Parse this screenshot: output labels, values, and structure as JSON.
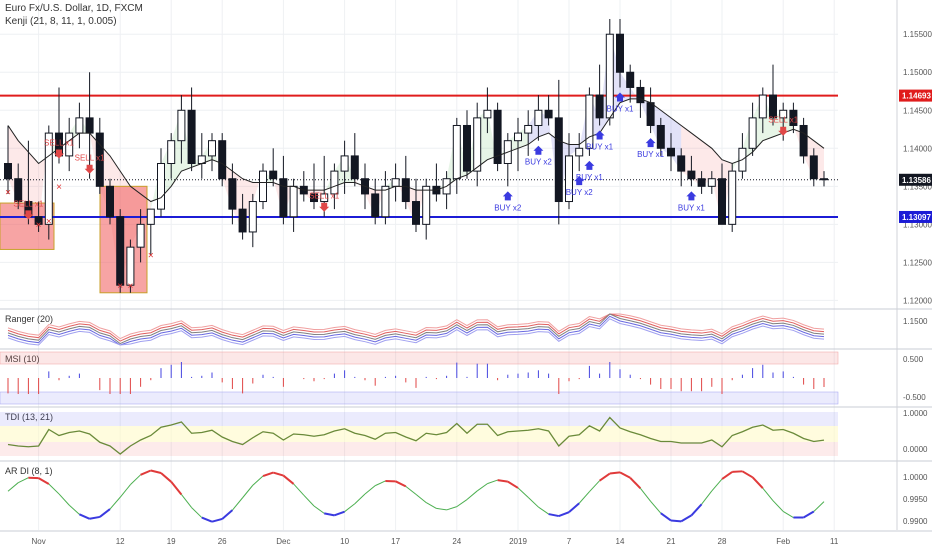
{
  "header": {
    "symbol_line": "Euro Fx/U.S. Dollar, 1D, FXCM",
    "indicator_line": "Kenji (21, 8, 11, 1, 0.005)"
  },
  "price_axis": {
    "ticks": [
      "1.15500",
      "1.15000",
      "1.14500",
      "1.14000",
      "1.13500",
      "1.13000",
      "1.12500",
      "1.12000"
    ]
  },
  "price_tags": [
    {
      "text": "1.14693",
      "value": 1.14693,
      "color": "#e01c1c"
    },
    {
      "text": "1.13586",
      "value": 1.13586,
      "color": "#131722"
    },
    {
      "text": "1.13097",
      "value": 1.13097,
      "color": "#1c1cd6"
    }
  ],
  "horizontal_levels": [
    {
      "value": 1.14693,
      "color": "#e01c1c"
    },
    {
      "value": 1.13097,
      "color": "#1c1cd6"
    }
  ],
  "time_axis": {
    "ticks": [
      "Nov",
      "12",
      "19",
      "26",
      "Dec",
      "10",
      "17",
      "24",
      "2019",
      "7",
      "14",
      "21",
      "28",
      "Feb",
      "11"
    ]
  },
  "signals": [
    {
      "label": "SELL x1",
      "type": "sell",
      "index": 2
    },
    {
      "label": "SELL x1",
      "type": "sell",
      "index": 5
    },
    {
      "label": "SELL x1",
      "type": "sell",
      "index": 8
    },
    {
      "label": "SELL x1",
      "type": "sell",
      "index": 31
    },
    {
      "label": "SELL x1",
      "type": "sell",
      "index": 76
    },
    {
      "label": "BUY x2",
      "type": "buy",
      "index": 49
    },
    {
      "label": "BUY x2",
      "type": "buy",
      "index": 52
    },
    {
      "label": "BUY x1",
      "type": "buy",
      "index": 58
    },
    {
      "label": "BUY x1",
      "type": "buy",
      "index": 57
    },
    {
      "label": "BUY x2",
      "type": "buy",
      "index": 56
    },
    {
      "label": "BUY x1",
      "type": "buy",
      "index": 60
    },
    {
      "label": "BUY x1",
      "type": "buy",
      "index": 63
    },
    {
      "label": "BUY x1",
      "type": "buy",
      "index": 67
    }
  ],
  "panels": [
    {
      "name": "ranger",
      "label": "Ranger (20)",
      "ticks": [
        "1.1500"
      ]
    },
    {
      "name": "msi",
      "label": "MSI (10)",
      "ticks": [
        "0.500",
        "-0.500"
      ]
    },
    {
      "name": "tdi",
      "label": "TDI (13, 21)",
      "ticks": [
        "1.0000",
        "0.0000"
      ]
    },
    {
      "name": "ardi",
      "label": "AR DI (8, 1)",
      "ticks": [
        "1.0000",
        "0.9950",
        "0.9900"
      ]
    }
  ],
  "chart_data": {
    "type": "candlestick",
    "symbol": "Euro Fx/U.S. Dollar",
    "interval": "1D",
    "ylim": [
      1.119,
      1.1595
    ],
    "ohlc": [
      [
        1.138,
        1.143,
        1.134,
        1.136
      ],
      [
        1.136,
        1.138,
        1.132,
        1.133
      ],
      [
        1.133,
        1.141,
        1.13,
        1.131
      ],
      [
        1.131,
        1.133,
        1.129,
        1.13
      ],
      [
        1.13,
        1.143,
        1.128,
        1.142
      ],
      [
        1.142,
        1.148,
        1.138,
        1.139
      ],
      [
        1.139,
        1.144,
        1.137,
        1.142
      ],
      [
        1.142,
        1.146,
        1.14,
        1.144
      ],
      [
        1.144,
        1.15,
        1.136,
        1.142
      ],
      [
        1.142,
        1.144,
        1.134,
        1.135
      ],
      [
        1.135,
        1.136,
        1.13,
        1.131
      ],
      [
        1.131,
        1.132,
        1.121,
        1.122
      ],
      [
        1.122,
        1.128,
        1.121,
        1.127
      ],
      [
        1.127,
        1.132,
        1.125,
        1.13
      ],
      [
        1.13,
        1.132,
        1.126,
        1.132
      ],
      [
        1.132,
        1.14,
        1.131,
        1.138
      ],
      [
        1.138,
        1.142,
        1.136,
        1.141
      ],
      [
        1.141,
        1.147,
        1.138,
        1.145
      ],
      [
        1.145,
        1.148,
        1.137,
        1.138
      ],
      [
        1.138,
        1.142,
        1.136,
        1.139
      ],
      [
        1.139,
        1.142,
        1.137,
        1.141
      ],
      [
        1.141,
        1.142,
        1.135,
        1.136
      ],
      [
        1.136,
        1.138,
        1.13,
        1.132
      ],
      [
        1.132,
        1.134,
        1.128,
        1.129
      ],
      [
        1.129,
        1.134,
        1.127,
        1.133
      ],
      [
        1.133,
        1.138,
        1.132,
        1.137
      ],
      [
        1.137,
        1.14,
        1.135,
        1.136
      ],
      [
        1.136,
        1.139,
        1.13,
        1.131
      ],
      [
        1.131,
        1.136,
        1.129,
        1.135
      ],
      [
        1.135,
        1.137,
        1.133,
        1.134
      ],
      [
        1.134,
        1.138,
        1.132,
        1.133
      ],
      [
        1.133,
        1.139,
        1.131,
        1.134
      ],
      [
        1.134,
        1.138,
        1.132,
        1.137
      ],
      [
        1.137,
        1.141,
        1.134,
        1.139
      ],
      [
        1.139,
        1.142,
        1.135,
        1.136
      ],
      [
        1.136,
        1.138,
        1.132,
        1.134
      ],
      [
        1.134,
        1.136,
        1.13,
        1.131
      ],
      [
        1.131,
        1.137,
        1.13,
        1.135
      ],
      [
        1.135,
        1.138,
        1.133,
        1.136
      ],
      [
        1.136,
        1.139,
        1.132,
        1.133
      ],
      [
        1.133,
        1.136,
        1.129,
        1.13
      ],
      [
        1.13,
        1.136,
        1.128,
        1.135
      ],
      [
        1.135,
        1.138,
        1.133,
        1.134
      ],
      [
        1.134,
        1.137,
        1.132,
        1.136
      ],
      [
        1.136,
        1.144,
        1.134,
        1.143
      ],
      [
        1.143,
        1.145,
        1.136,
        1.137
      ],
      [
        1.137,
        1.146,
        1.135,
        1.144
      ],
      [
        1.144,
        1.148,
        1.142,
        1.145
      ],
      [
        1.145,
        1.146,
        1.137,
        1.138
      ],
      [
        1.138,
        1.142,
        1.135,
        1.141
      ],
      [
        1.141,
        1.144,
        1.137,
        1.142
      ],
      [
        1.142,
        1.145,
        1.139,
        1.143
      ],
      [
        1.143,
        1.147,
        1.141,
        1.145
      ],
      [
        1.145,
        1.147,
        1.143,
        1.144
      ],
      [
        1.144,
        1.149,
        1.13,
        1.133
      ],
      [
        1.133,
        1.142,
        1.132,
        1.139
      ],
      [
        1.139,
        1.142,
        1.137,
        1.14
      ],
      [
        1.14,
        1.148,
        1.139,
        1.147
      ],
      [
        1.147,
        1.151,
        1.143,
        1.144
      ],
      [
        1.144,
        1.157,
        1.143,
        1.155
      ],
      [
        1.155,
        1.157,
        1.148,
        1.15
      ],
      [
        1.15,
        1.151,
        1.146,
        1.148
      ],
      [
        1.148,
        1.149,
        1.144,
        1.146
      ],
      [
        1.146,
        1.148,
        1.142,
        1.143
      ],
      [
        1.143,
        1.144,
        1.139,
        1.14
      ],
      [
        1.14,
        1.142,
        1.137,
        1.139
      ],
      [
        1.139,
        1.14,
        1.135,
        1.137
      ],
      [
        1.137,
        1.139,
        1.135,
        1.136
      ],
      [
        1.136,
        1.137,
        1.134,
        1.135
      ],
      [
        1.135,
        1.137,
        1.134,
        1.136
      ],
      [
        1.136,
        1.138,
        1.13,
        1.13
      ],
      [
        1.13,
        1.138,
        1.129,
        1.137
      ],
      [
        1.137,
        1.142,
        1.136,
        1.14
      ],
      [
        1.14,
        1.146,
        1.139,
        1.144
      ],
      [
        1.144,
        1.148,
        1.142,
        1.147
      ],
      [
        1.147,
        1.151,
        1.143,
        1.144
      ],
      [
        1.144,
        1.146,
        1.141,
        1.145
      ],
      [
        1.145,
        1.146,
        1.142,
        1.143
      ],
      [
        1.143,
        1.144,
        1.138,
        1.139
      ],
      [
        1.139,
        1.14,
        1.135,
        1.136
      ],
      [
        1.136,
        1.137,
        1.135,
        1.1359
      ]
    ],
    "kenji_line": [
      1.143,
      1.141,
      1.1395,
      1.138,
      1.139,
      1.14,
      1.141,
      1.142,
      1.142,
      1.1405,
      1.139,
      1.137,
      1.135,
      1.134,
      1.133,
      1.1335,
      1.135,
      1.137,
      1.1375,
      1.138,
      1.1385,
      1.138,
      1.137,
      1.136,
      1.1355,
      1.1355,
      1.1355,
      1.135,
      1.135,
      1.1345,
      1.1345,
      1.1345,
      1.135,
      1.1355,
      1.1355,
      1.135,
      1.1345,
      1.1345,
      1.135,
      1.135,
      1.1345,
      1.1345,
      1.1345,
      1.135,
      1.136,
      1.1365,
      1.1375,
      1.1385,
      1.139,
      1.1395,
      1.14,
      1.1405,
      1.1415,
      1.142,
      1.141,
      1.1405,
      1.1405,
      1.1415,
      1.142,
      1.144,
      1.146,
      1.1465,
      1.1465,
      1.146,
      1.145,
      1.144,
      1.143,
      1.142,
      1.141,
      1.14,
      1.1385,
      1.138,
      1.1385,
      1.1395,
      1.141,
      1.1415,
      1.142,
      1.1425,
      1.142,
      1.141,
      1.14
    ],
    "levels": {
      "resistance": 1.14693,
      "support": 1.13097,
      "last": 1.13586
    }
  }
}
